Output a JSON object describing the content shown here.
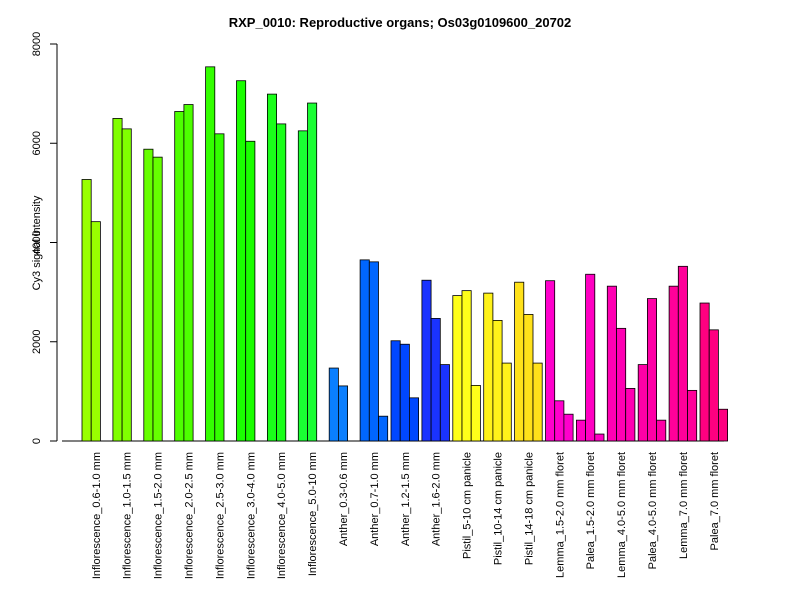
{
  "chart_data": {
    "type": "bar",
    "title": "RXP_0010: Reproductive organs; Os03g0109600_20702",
    "xlabel": "",
    "ylabel": "Cy3 signal intensity",
    "ylim": [
      0,
      8000
    ],
    "yticks": [
      0,
      2000,
      4000,
      6000,
      8000
    ],
    "grid": false,
    "legend": "none",
    "groups": [
      {
        "label": "Inflorescence_0.6-1.0 mm",
        "color": "#99FF00",
        "values": [
          5270,
          4420
        ]
      },
      {
        "label": "Inflorescence_1.0-1.5 mm",
        "color": "#80FF00",
        "values": [
          6500,
          6290
        ]
      },
      {
        "label": "Inflorescence_1.5-2.0 mm",
        "color": "#66FF00",
        "values": [
          5880,
          5720
        ]
      },
      {
        "label": "Inflorescence_2.0-2.5 mm",
        "color": "#4DFF00",
        "values": [
          6640,
          6780
        ]
      },
      {
        "label": "Inflorescence_2.5-3.0 mm",
        "color": "#33FF00",
        "values": [
          7540,
          6190
        ]
      },
      {
        "label": "Inflorescence_3.0-4.0 mm",
        "color": "#1AFF00",
        "values": [
          7260,
          6040
        ]
      },
      {
        "label": "Inflorescence_4.0-5.0 mm",
        "color": "#1AFF1A",
        "values": [
          6990,
          6390
        ]
      },
      {
        "label": "Inflorescence_5.0-10 mm",
        "color": "#1AFF33",
        "values": [
          6250,
          6810
        ]
      },
      {
        "label": "Anther_0.3-0.6 mm",
        "color": "#0A7FFF",
        "values": [
          1470,
          1110
        ]
      },
      {
        "label": "Anther_0.7-1.0 mm",
        "color": "#0066FF",
        "values": [
          3650,
          3610,
          500
        ]
      },
      {
        "label": "Anther_1.2-1.5 mm",
        "color": "#0047FF",
        "values": [
          2020,
          1950,
          870
        ]
      },
      {
        "label": "Anther_1.6-2.0 mm",
        "color": "#1A33FF",
        "values": [
          3240,
          2470,
          1540
        ]
      },
      {
        "label": "Pistil_5-10 cm panicle",
        "color": "#FFFF1A",
        "values": [
          2930,
          3030,
          1120
        ]
      },
      {
        "label": "Pistil_10-14 cm panicle",
        "color": "#FFF21A",
        "values": [
          2980,
          2430,
          1570
        ]
      },
      {
        "label": "Pistil_14-18 cm panicle",
        "color": "#FFE11A",
        "values": [
          3200,
          2550,
          1570
        ]
      },
      {
        "label": "Lemma_1.5-2.0 mm floret",
        "color": "#FF00CC",
        "values": [
          3230,
          810,
          540
        ]
      },
      {
        "label": "Palea_1.5-2.0 mm floret",
        "color": "#FF00C2",
        "values": [
          420,
          3360,
          140
        ]
      },
      {
        "label": "Lemma_4.0-5.0 mm floret",
        "color": "#FF00B3",
        "values": [
          3120,
          2270,
          1060
        ]
      },
      {
        "label": "Palea_4.0-5.0 mm floret",
        "color": "#FF00A6",
        "values": [
          1540,
          2870,
          420
        ]
      },
      {
        "label": "Lemma_7.0 mm floret",
        "color": "#FF0099",
        "values": [
          3120,
          3520,
          1020
        ]
      },
      {
        "label": "Palea_7.0 mm floret",
        "color": "#FF0080",
        "values": [
          2780,
          2240,
          640
        ]
      }
    ]
  }
}
